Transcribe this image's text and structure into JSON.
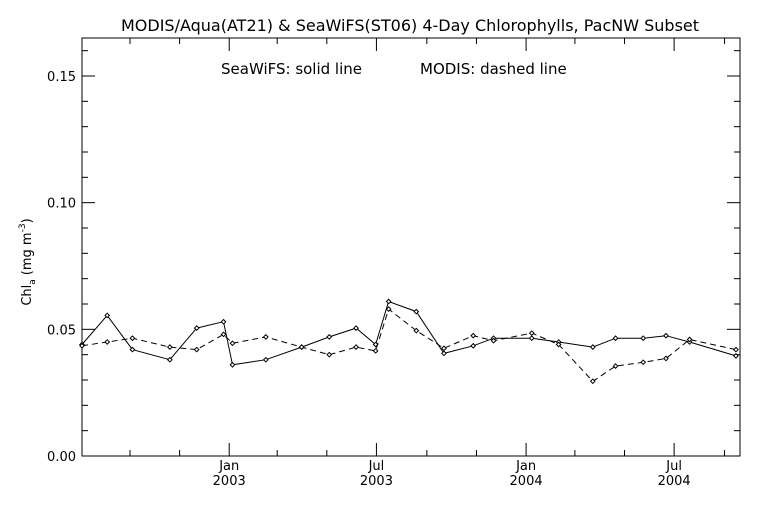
{
  "chart_data": {
    "type": "line",
    "title": "MODIS/Aqua(AT21) & SeaWiFS(ST06) 4-Day Chlorophylls, PacNW Subset",
    "annotation": {
      "seawifs": "SeaWiFS: solid line",
      "modis": "MODIS: dashed line"
    },
    "ylabel": {
      "main": "Chl",
      "sub": "a",
      "unit": "(mg m",
      "exp": "-3",
      "close": ")"
    },
    "ylim": [
      0,
      0.165
    ],
    "yticks": [
      {
        "value": 0.0,
        "label": "0.00"
      },
      {
        "value": 0.05,
        "label": "0.05"
      },
      {
        "value": 0.1,
        "label": "0.10"
      },
      {
        "value": 0.15,
        "label": "0.15"
      }
    ],
    "yminor_step": 0.01,
    "xlim": [
      "2002-07-04",
      "2004-09-20"
    ],
    "xticks": [
      {
        "date": "2003-01-01",
        "month": "Jan",
        "year": "2003"
      },
      {
        "date": "2003-07-01",
        "month": "Jul",
        "year": "2003"
      },
      {
        "date": "2004-01-01",
        "month": "Jan",
        "year": "2004"
      },
      {
        "date": "2004-07-01",
        "month": "Jul",
        "year": "2004"
      }
    ],
    "xminor_months": [
      "2002-09-01",
      "2002-11-01",
      "2003-03-01",
      "2003-05-01",
      "2003-09-01",
      "2003-11-01",
      "2004-03-01",
      "2004-05-01",
      "2004-09-01"
    ],
    "grid": false,
    "series": [
      {
        "name": "SeaWiFS",
        "style": "solid",
        "color": "#000000",
        "points": [
          {
            "x": "2002-07-04",
            "y": 0.044
          },
          {
            "x": "2002-08-04",
            "y": 0.0555
          },
          {
            "x": "2002-09-04",
            "y": 0.042
          },
          {
            "x": "2002-10-20",
            "y": 0.038
          },
          {
            "x": "2002-11-22",
            "y": 0.0505
          },
          {
            "x": "2002-12-25",
            "y": 0.053
          },
          {
            "x": "2003-01-05",
            "y": 0.036
          },
          {
            "x": "2003-02-15",
            "y": 0.038
          },
          {
            "x": "2003-03-31",
            "y": 0.043
          },
          {
            "x": "2003-05-04",
            "y": 0.047
          },
          {
            "x": "2003-06-06",
            "y": 0.0505
          },
          {
            "x": "2003-06-30",
            "y": 0.044
          },
          {
            "x": "2003-07-16",
            "y": 0.061
          },
          {
            "x": "2003-08-19",
            "y": 0.057
          },
          {
            "x": "2003-09-22",
            "y": 0.0405
          },
          {
            "x": "2003-10-28",
            "y": 0.0435
          },
          {
            "x": "2003-11-22",
            "y": 0.0465
          },
          {
            "x": "2004-01-08",
            "y": 0.0465
          },
          {
            "x": "2004-02-10",
            "y": 0.045
          },
          {
            "x": "2004-03-23",
            "y": 0.043
          },
          {
            "x": "2004-04-20",
            "y": 0.0465
          },
          {
            "x": "2004-05-24",
            "y": 0.0465
          },
          {
            "x": "2004-06-21",
            "y": 0.0475
          },
          {
            "x": "2004-07-20",
            "y": 0.045
          },
          {
            "x": "2004-09-15",
            "y": 0.0395
          }
        ]
      },
      {
        "name": "MODIS",
        "style": "dashed",
        "color": "#000000",
        "points": [
          {
            "x": "2002-07-04",
            "y": 0.0435
          },
          {
            "x": "2002-08-04",
            "y": 0.045
          },
          {
            "x": "2002-09-04",
            "y": 0.0465
          },
          {
            "x": "2002-10-20",
            "y": 0.043
          },
          {
            "x": "2002-11-22",
            "y": 0.042
          },
          {
            "x": "2002-12-25",
            "y": 0.048
          },
          {
            "x": "2003-01-05",
            "y": 0.0445
          },
          {
            "x": "2003-02-15",
            "y": 0.047
          },
          {
            "x": "2003-03-31",
            "y": 0.043
          },
          {
            "x": "2003-05-04",
            "y": 0.04
          },
          {
            "x": "2003-06-06",
            "y": 0.043
          },
          {
            "x": "2003-06-30",
            "y": 0.0415
          },
          {
            "x": "2003-07-16",
            "y": 0.058
          },
          {
            "x": "2003-08-19",
            "y": 0.0495
          },
          {
            "x": "2003-09-22",
            "y": 0.0425
          },
          {
            "x": "2003-10-28",
            "y": 0.0475
          },
          {
            "x": "2003-11-22",
            "y": 0.0455
          },
          {
            "x": "2004-01-08",
            "y": 0.0485
          },
          {
            "x": "2004-02-10",
            "y": 0.044
          },
          {
            "x": "2004-03-23",
            "y": 0.0295
          },
          {
            "x": "2004-04-20",
            "y": 0.0355
          },
          {
            "x": "2004-05-24",
            "y": 0.037
          },
          {
            "x": "2004-06-21",
            "y": 0.0385
          },
          {
            "x": "2004-07-20",
            "y": 0.046
          },
          {
            "x": "2004-09-15",
            "y": 0.042
          }
        ]
      }
    ]
  }
}
